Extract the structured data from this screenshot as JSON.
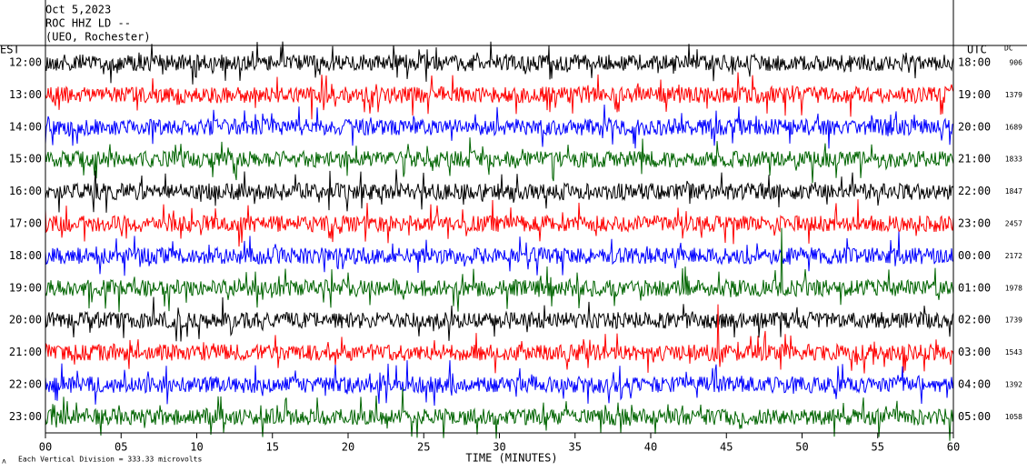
{
  "chart_data": {
    "type": "helicorder",
    "title_lines": [
      "Oct 5,2023",
      "ROC HHZ LD --",
      "(UEO, Rochester)"
    ],
    "left_axis_label": "EST",
    "right_axis_label": "UTC",
    "dc_label": "DC",
    "x_label": "TIME (MINUTES)",
    "scale_note": "Each Vertical Division = 333.33 microvolts",
    "xlim": [
      0,
      60
    ],
    "xticks": [
      {
        "value": 0,
        "label": "00"
      },
      {
        "value": 5,
        "label": "05"
      },
      10,
      15,
      20,
      25,
      30,
      35,
      40,
      45,
      50,
      55,
      60
    ],
    "left_labels": [
      "12:00",
      "13:00",
      "14:00",
      "15:00",
      "16:00",
      "17:00",
      "18:00",
      "19:00",
      "20:00",
      "21:00",
      "22:00",
      "23:00"
    ],
    "right_labels": [
      "18:00",
      "19:00",
      "20:00",
      "21:00",
      "22:00",
      "23:00",
      "00:00",
      "01:00",
      "02:00",
      "03:00",
      "04:00",
      "05:00"
    ],
    "dc_values": [
      906,
      1379,
      1689,
      1833,
      1847,
      2457,
      2172,
      1978,
      1739,
      1543,
      1392,
      1058
    ],
    "trace_colors": [
      "#000000",
      "#ff0000",
      "#0000ff",
      "#006400"
    ]
  }
}
